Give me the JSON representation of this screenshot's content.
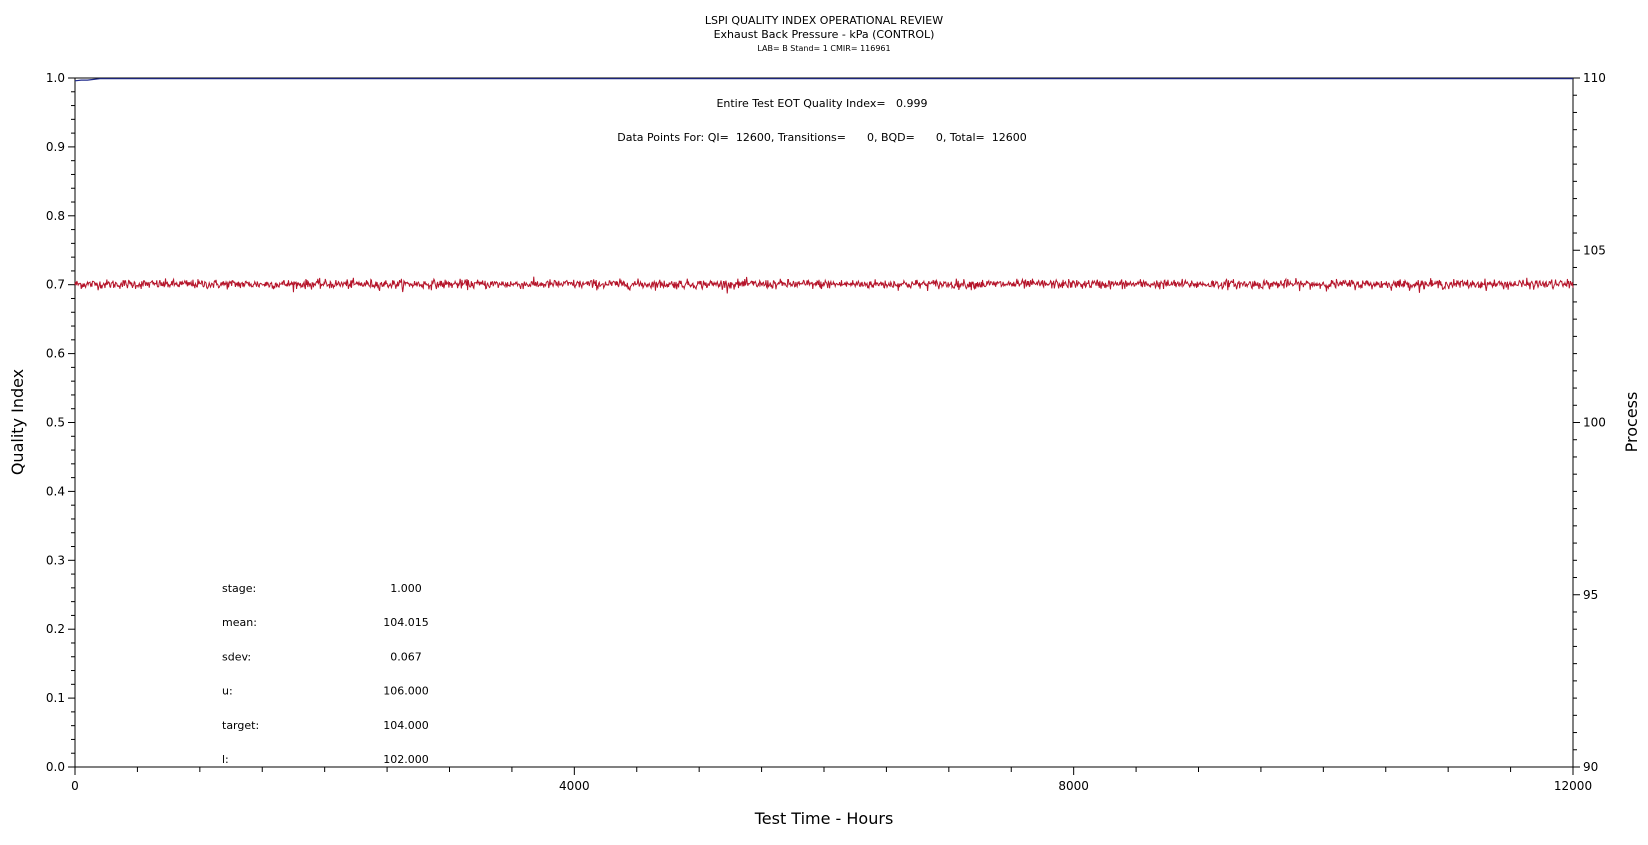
{
  "chart_data": {
    "type": "line",
    "title": "LSPI QUALITY INDEX OPERATIONAL REVIEW",
    "subtitle": "Exhaust Back Pressure - kPa (CONTROL)",
    "subtitle2": "LAB= B Stand= 1 CMIR= 116961",
    "xlabel": "Test Time - Hours",
    "ylabel_left": "Quality Index",
    "ylabel_right": "Process",
    "xlim": [
      0,
      12000
    ],
    "ylim_left": [
      0.0,
      1.0
    ],
    "ylim_right": [
      90,
      110
    ],
    "x_ticks": [
      0,
      4000,
      8000,
      12000
    ],
    "y_left_ticks": [
      "0.0",
      "0.1",
      "0.2",
      "0.3",
      "0.4",
      "0.5",
      "0.6",
      "0.7",
      "0.8",
      "0.9",
      "1.0"
    ],
    "y_right_ticks": [
      90,
      95,
      100,
      105,
      110
    ],
    "annotations": {
      "eot": "Entire Test EOT Quality Index=   0.999",
      "points": "Data Points For: QI=  12600, Transitions=      0, BQD=      0, Total=  12600"
    },
    "series": [
      {
        "axis": "left",
        "color": "#1f2a8c",
        "x": [
          0,
          50,
          100,
          150,
          200,
          300,
          500,
          1000,
          2000,
          4000,
          6000,
          8000,
          10000,
          12000
        ],
        "y": [
          0.996,
          0.997,
          0.997,
          0.998,
          0.999,
          0.999,
          0.999,
          0.999,
          0.999,
          0.999,
          0.999,
          0.999,
          0.999,
          0.999
        ]
      },
      {
        "axis": "right",
        "color": "#b5142a",
        "mean": 104.015,
        "sdev": 0.067,
        "x_range": [
          0,
          12000
        ]
      }
    ],
    "stats": [
      {
        "label": "stage:",
        "value": "1.000"
      },
      {
        "label": "mean:",
        "value": "104.015"
      },
      {
        "label": "sdev:",
        "value": "0.067"
      },
      {
        "label": "u:",
        "value": "106.000"
      },
      {
        "label": "target:",
        "value": "104.000"
      },
      {
        "label": "l:",
        "value": "102.000"
      }
    ]
  }
}
